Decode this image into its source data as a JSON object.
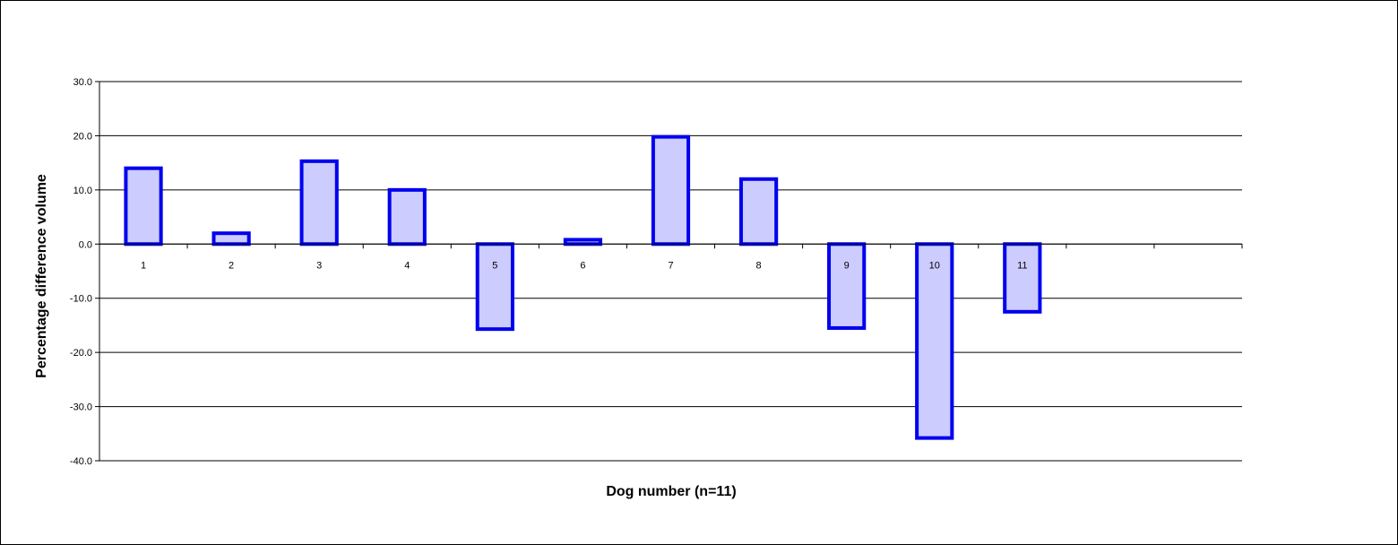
{
  "chart_data": {
    "type": "bar",
    "categories": [
      "1",
      "2",
      "3",
      "4",
      "5",
      "6",
      "7",
      "8",
      "9",
      "10",
      "11",
      "",
      ""
    ],
    "values": [
      14.0,
      2.0,
      15.3,
      10.0,
      -15.7,
      0.8,
      19.8,
      12.0,
      -15.5,
      -35.8,
      -12.5,
      null,
      null
    ],
    "xlabel": "Dog number (n=11)",
    "ylabel": "Percentage difference volume",
    "ylim": [
      -40.0,
      30.0
    ],
    "yticks": [
      "30.0",
      "20.0",
      "10.0",
      "0.0",
      "-10.0",
      "-20.0",
      "-30.0",
      "-40.0"
    ],
    "grid": true,
    "bar_fill": "#ccccff",
    "bar_stroke": "#0000ee"
  }
}
